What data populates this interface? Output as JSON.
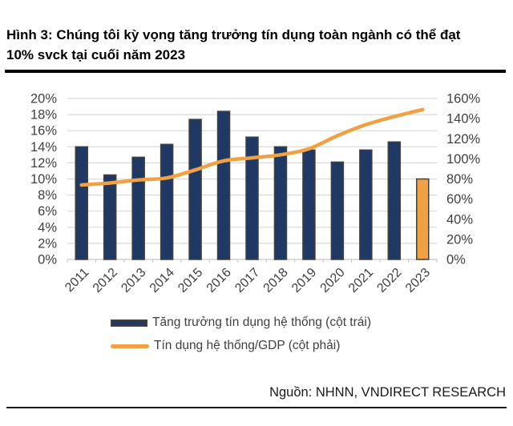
{
  "figure": {
    "title_lines": [
      "Hình 3: Chúng tôi kỳ vọng tăng trưởng tín dụng toàn ngành có thể đạt",
      "10% svck tại cuối năm 2023"
    ],
    "source_label": "Nguồn: NHNN, VNDIRECT RESEARCH"
  },
  "chart_data": {
    "type": "bar",
    "combo": "bar+line-dual-axis",
    "categories": [
      "2011",
      "2012",
      "2013",
      "2014",
      "2015",
      "2016",
      "2017",
      "2018",
      "2019",
      "2020",
      "2021",
      "2022",
      "2023"
    ],
    "series": [
      {
        "name": "Tăng trưởng tín dụng hệ thống (cột trái)",
        "type": "bar",
        "axis": "left",
        "values": [
          14.0,
          10.5,
          12.7,
          14.3,
          17.4,
          18.4,
          15.2,
          14.0,
          13.6,
          12.1,
          13.6,
          14.6,
          10.0
        ],
        "color": "#1F3864",
        "border_color": "#404040",
        "forecast_index": 12,
        "forecast_color": "#F0A144"
      },
      {
        "name": "Tín dụng hệ thống/GDP (cột phải)",
        "type": "line",
        "axis": "right",
        "values": [
          74,
          76,
          79,
          81,
          89,
          98,
          101,
          104,
          110,
          123,
          134,
          142,
          149
        ],
        "color": "#F0A144",
        "smooth": true
      }
    ],
    "left_axis": {
      "min": 0,
      "max": 20,
      "step": 2,
      "suffix": "%"
    },
    "right_axis": {
      "min": 0,
      "max": 160,
      "step": 20,
      "suffix": "%"
    },
    "grid": true,
    "legend_position": "bottom-left",
    "colors": {
      "gridline": "#D9D9D9",
      "axis_line": "#C6C6C6",
      "tick_text": "#404040"
    }
  }
}
